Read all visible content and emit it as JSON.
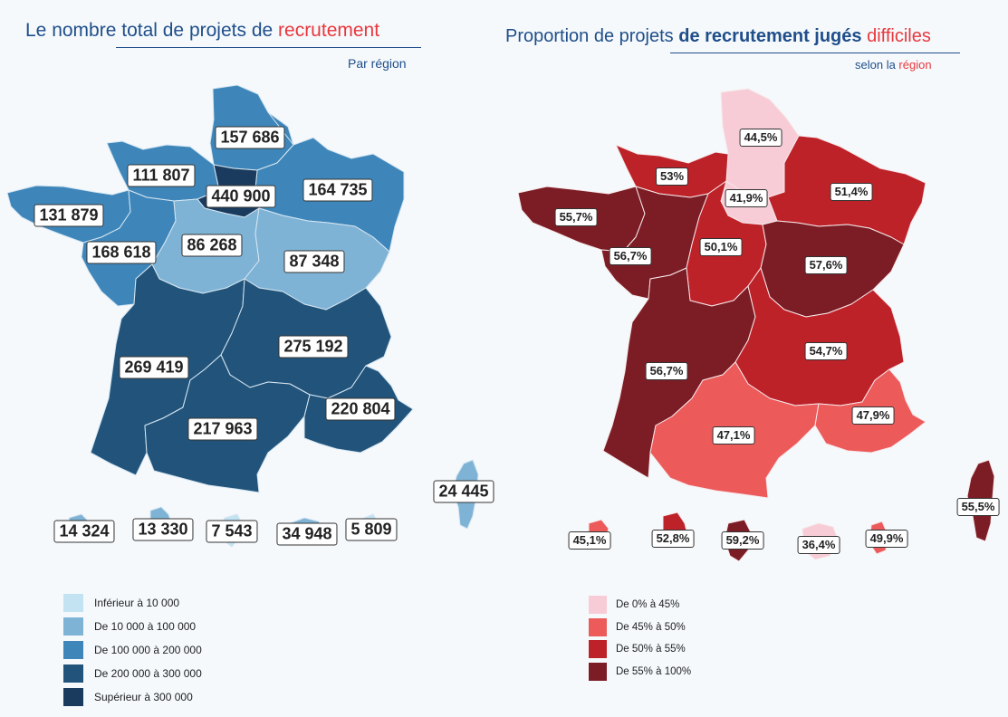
{
  "left_map": {
    "title_part1": "Le nombre total de projets de ",
    "title_part2": "recrutement",
    "subtitle": "Par région",
    "regions": [
      {
        "name": "Hauts-de-France",
        "value": "157 686",
        "num": 157686,
        "class": 3
      },
      {
        "name": "Normandie",
        "value": "111 807",
        "num": 111807,
        "class": 3
      },
      {
        "name": "Île-de-France",
        "value": "440 900",
        "num": 440900,
        "class": 5
      },
      {
        "name": "Grand Est",
        "value": "164 735",
        "num": 164735,
        "class": 3
      },
      {
        "name": "Bretagne",
        "value": "131 879",
        "num": 131879,
        "class": 3
      },
      {
        "name": "Pays de la Loire",
        "value": "168 618",
        "num": 168618,
        "class": 3
      },
      {
        "name": "Centre-Val de Loire",
        "value": "86 268",
        "num": 86268,
        "class": 2
      },
      {
        "name": "Bourgogne-Franche-Comté",
        "value": "87 348",
        "num": 87348,
        "class": 2
      },
      {
        "name": "Nouvelle-Aquitaine",
        "value": "269 419",
        "num": 269419,
        "class": 4
      },
      {
        "name": "Auvergne-Rhône-Alpes",
        "value": "275 192",
        "num": 275192,
        "class": 4
      },
      {
        "name": "Occitanie",
        "value": "217 963",
        "num": 217963,
        "class": 4
      },
      {
        "name": "Provence-Alpes-Côte d'Azur",
        "value": "220 804",
        "num": 220804,
        "class": 4
      },
      {
        "name": "Corse",
        "value": "24 445",
        "num": 24445,
        "class": 2
      },
      {
        "name": "Guadeloupe",
        "value": "14 324",
        "num": 14324,
        "class": 2
      },
      {
        "name": "Martinique",
        "value": "13 330",
        "num": 13330,
        "class": 2
      },
      {
        "name": "Guyane",
        "value": "7 543",
        "num": 7543,
        "class": 1
      },
      {
        "name": "La Réunion",
        "value": "34 948",
        "num": 34948,
        "class": 2
      },
      {
        "name": "Mayotte",
        "value": "5 809",
        "num": 5809,
        "class": 1
      }
    ],
    "legend": [
      {
        "label": "Inférieur à 10 000",
        "color": "#c3e3f3"
      },
      {
        "label": "De 10 000 à 100 000",
        "color": "#7fb3d6"
      },
      {
        "label": "De 100 000 à 200 000",
        "color": "#3e86ba"
      },
      {
        "label": "De 200 000 à 300 000",
        "color": "#22547b"
      },
      {
        "label": "Supérieur à 300 000",
        "color": "#1a3b5e"
      }
    ]
  },
  "right_map": {
    "title_part1": "Proportion de projets ",
    "title_part2": "de recrutement jugés ",
    "title_part3": "difficiles",
    "subtitle_part1": "selon la ",
    "subtitle_part2": "région",
    "regions": [
      {
        "name": "Hauts-de-France",
        "value": "44,5%",
        "num": 44.5,
        "class": 1
      },
      {
        "name": "Normandie",
        "value": "53%",
        "num": 53,
        "class": 3
      },
      {
        "name": "Île-de-France",
        "value": "41,9%",
        "num": 41.9,
        "class": 1
      },
      {
        "name": "Grand Est",
        "value": "51,4%",
        "num": 51.4,
        "class": 3
      },
      {
        "name": "Bretagne",
        "value": "55,7%",
        "num": 55.7,
        "class": 4
      },
      {
        "name": "Pays de la Loire",
        "value": "56,7%",
        "num": 56.7,
        "class": 4
      },
      {
        "name": "Centre-Val de Loire",
        "value": "50,1%",
        "num": 50.1,
        "class": 3
      },
      {
        "name": "Bourgogne-Franche-Comté",
        "value": "57,6%",
        "num": 57.6,
        "class": 4
      },
      {
        "name": "Nouvelle-Aquitaine",
        "value": "56,7%",
        "num": 56.7,
        "class": 4
      },
      {
        "name": "Auvergne-Rhône-Alpes",
        "value": "54,7%",
        "num": 54.7,
        "class": 3
      },
      {
        "name": "Occitanie",
        "value": "47,1%",
        "num": 47.1,
        "class": 2
      },
      {
        "name": "Provence-Alpes-Côte d'Azur",
        "value": "47,9%",
        "num": 47.9,
        "class": 2
      },
      {
        "name": "Corse",
        "value": "55,5%",
        "num": 55.5,
        "class": 4
      },
      {
        "name": "Guadeloupe",
        "value": "45,1%",
        "num": 45.1,
        "class": 2
      },
      {
        "name": "Martinique",
        "value": "52,8%",
        "num": 52.8,
        "class": 3
      },
      {
        "name": "Guyane",
        "value": "59,2%",
        "num": 59.2,
        "class": 4
      },
      {
        "name": "La Réunion",
        "value": "36,4%",
        "num": 36.4,
        "class": 1
      },
      {
        "name": "Mayotte",
        "value": "49,9%",
        "num": 49.9,
        "class": 2
      }
    ],
    "legend": [
      {
        "label": "De 0% à 45%",
        "color": "#f7ccd6"
      },
      {
        "label": "De 45% à 50%",
        "color": "#ec5a5a"
      },
      {
        "label": "De 50% à 55%",
        "color": "#bd2229"
      },
      {
        "label": "De 55% à 100%",
        "color": "#7c1d25"
      }
    ]
  }
}
